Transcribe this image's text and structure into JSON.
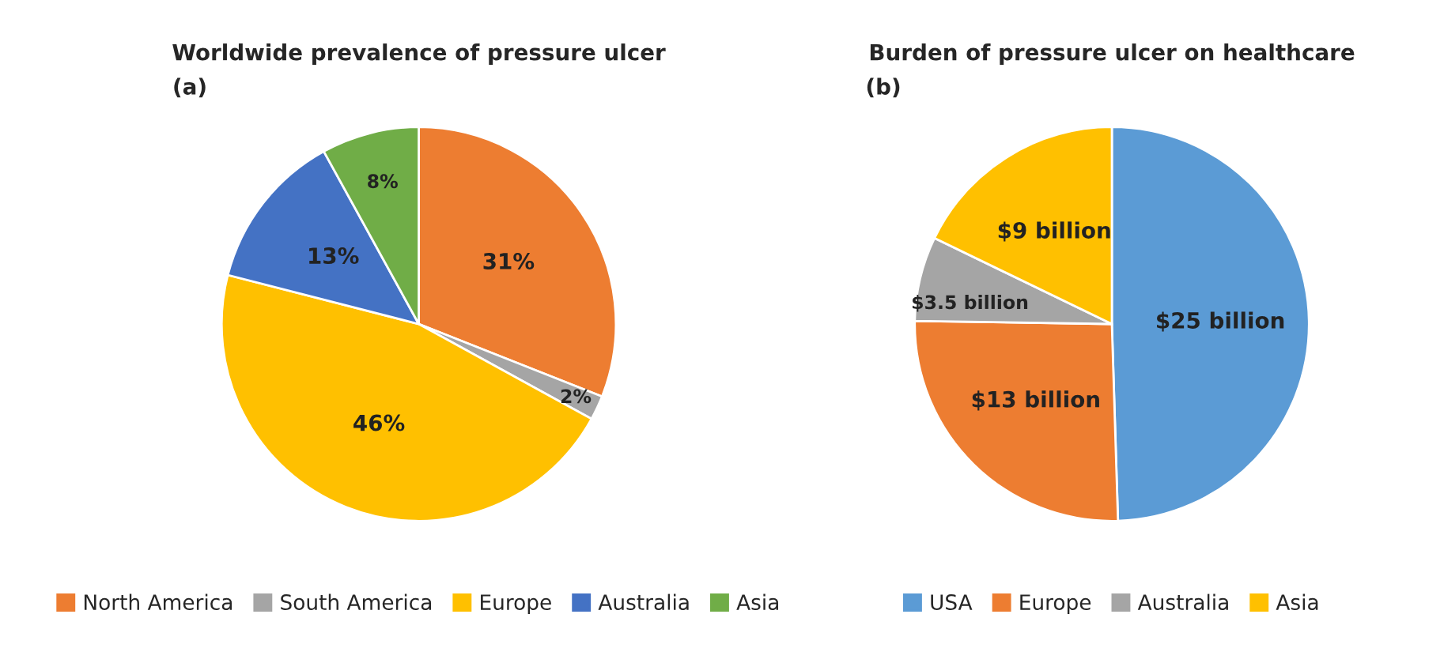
{
  "chart_data": [
    {
      "type": "pie",
      "title": "Worldwide prevalence of pressure ulcer",
      "annotations": [
        "(a)"
      ],
      "categories": [
        "North America",
        "South America",
        "Europe",
        "Australia",
        "Asia"
      ],
      "values": [
        31,
        2,
        46,
        13,
        8
      ],
      "value_labels": [
        "31%",
        "2%",
        "46%",
        "13%",
        "8%"
      ],
      "colors": [
        "#ed7d31",
        "#a5a5a5",
        "#ffc000",
        "#4472c4",
        "#70ad47"
      ],
      "legend": "bottom"
    },
    {
      "type": "pie",
      "title": "Burden of pressure ulcer on healthcare",
      "annotations": [
        "(b)"
      ],
      "categories": [
        "USA",
        "Europe",
        "Australia",
        "Asia"
      ],
      "values": [
        25,
        13,
        3.5,
        9
      ],
      "value_labels": [
        "$25 billion",
        "$13 billion",
        "$3.5 billion",
        "$9 billion"
      ],
      "colors": [
        "#5b9bd5",
        "#ed7d31",
        "#a5a5a5",
        "#ffc000"
      ],
      "legend": "bottom"
    }
  ]
}
